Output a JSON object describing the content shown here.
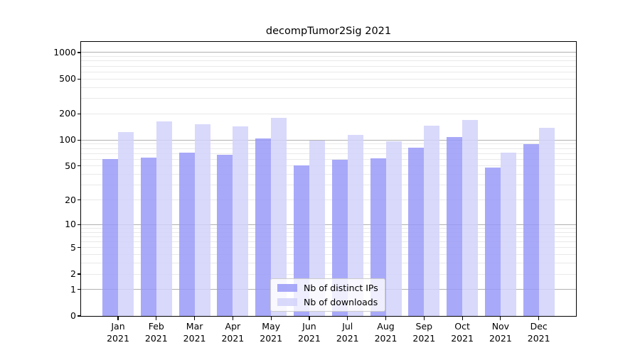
{
  "chart_data": {
    "type": "bar",
    "title": "decompTumor2Sig 2021",
    "categories": [
      "Jan 2021",
      "Feb 2021",
      "Mar 2021",
      "Apr 2021",
      "May 2021",
      "Jun 2021",
      "Jul 2021",
      "Aug 2021",
      "Sep 2021",
      "Oct 2021",
      "Nov 2021",
      "Dec 2021"
    ],
    "series": [
      {
        "name": "Nb of distinct IPs",
        "color": "#9a9af8",
        "fill_alpha": 0.85,
        "values": [
          60,
          63,
          72,
          68,
          104,
          51,
          59,
          62,
          82,
          108,
          48,
          89
        ]
      },
      {
        "name": "Nb of downloads",
        "color": "#d2d2fa",
        "fill_alpha": 0.85,
        "values": [
          123,
          164,
          152,
          143,
          178,
          99,
          114,
          96,
          146,
          171,
          72,
          138
        ]
      }
    ],
    "yscale": "log1p",
    "yticks": [
      0,
      1,
      2,
      5,
      10,
      20,
      50,
      100,
      200,
      500,
      1000
    ],
    "ylim": [
      0,
      1350
    ],
    "xlabel": "",
    "ylabel": "",
    "grid": "on",
    "legend_position": "lower center"
  },
  "colors": {
    "major_grid": "#b0b0b0",
    "minor_grid": "#e9e9e9",
    "axis_line": "#000000",
    "text": "#000000",
    "legend_border": "#cccccc",
    "legend_bg_rgba": "rgba(255,255,255,0.8)"
  }
}
